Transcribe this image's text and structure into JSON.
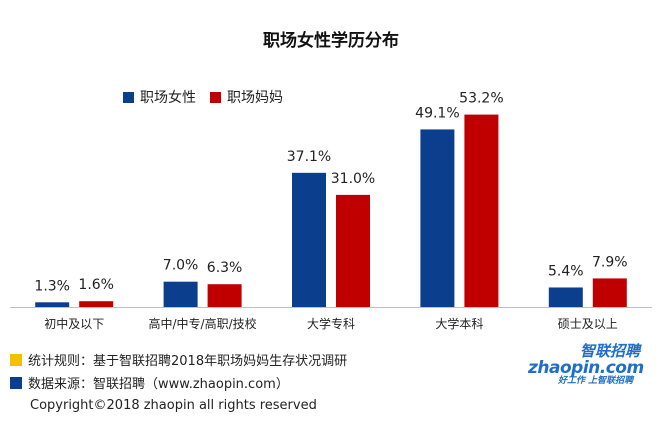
{
  "chart_data": {
    "type": "bar",
    "title": "职场女性学历分布",
    "categories": [
      "初中及以下",
      "高中/中专/高职/技校",
      "大学专科",
      "大学本科",
      "硕士及以上"
    ],
    "series": [
      {
        "name": "职场女性",
        "values": [
          1.3,
          7.0,
          37.1,
          49.1,
          5.4
        ],
        "labels": [
          "1.3%",
          "7.0%",
          "37.1%",
          "49.1%",
          "5.4%"
        ],
        "color": "#0b3f8e"
      },
      {
        "name": "职场妈妈",
        "values": [
          1.6,
          6.3,
          31.0,
          53.2,
          7.9
        ],
        "labels": [
          "1.6%",
          "6.3%",
          "31.0%",
          "53.2%",
          "7.9%"
        ],
        "color": "#c00000"
      }
    ],
    "ylim": [
      0,
      60
    ],
    "grid": false,
    "legend_position": "top-left"
  },
  "footer": {
    "rule_text": "统计规则：基于智联招聘2018年职场妈妈生存状况调研",
    "rule_color": "#f2c200",
    "source_text": "数据来源：智联招聘（www.zhaopin.com）",
    "source_color": "#0b3f8e",
    "copyright": "Copyright©2018 zhaopin all rights reserved"
  },
  "logo": {
    "main": "zhaopin.com",
    "cn": "智联招聘",
    "sub": "好工作 上智联招聘"
  }
}
